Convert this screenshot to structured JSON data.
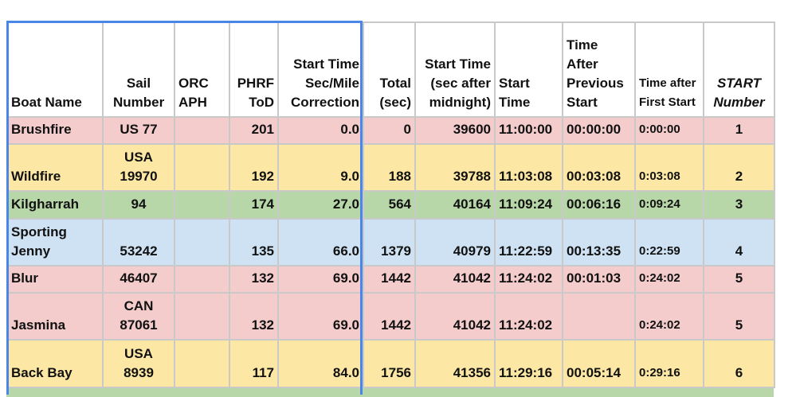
{
  "table": {
    "header": [
      "Boat Name",
      "Sail Number",
      "ORC APH",
      "PHRF ToD",
      "Start Time Sec/Mile Correction",
      "Total (sec)",
      "Start Time (sec after midnight)",
      "Start Time",
      "Time After Previous Start",
      "Time after First Start",
      "START Number"
    ],
    "rows": [
      {
        "color": "#f4cccc",
        "cells": [
          "Brushfire",
          "US 77",
          null,
          "201",
          "0.0",
          "0",
          "39600",
          "11:00:00",
          "00:00:00",
          "0:00:00",
          "1"
        ]
      },
      {
        "color": "#fce8a4",
        "cells": [
          "Wildfire",
          "USA 19970",
          null,
          "192",
          "9.0",
          "188",
          "39788",
          "11:03:08",
          "00:03:08",
          "0:03:08",
          "2"
        ]
      },
      {
        "color": "#b7d7a8",
        "cells": [
          "Kilgharrah",
          "94",
          null,
          "174",
          "27.0",
          "564",
          "40164",
          "11:09:24",
          "00:06:16",
          "0:09:24",
          "3"
        ]
      },
      {
        "color": "#cfe2f3",
        "cells": [
          "Sporting Jenny",
          "53242",
          null,
          "135",
          "66.0",
          "1379",
          "40979",
          "11:22:59",
          "00:13:35",
          "0:22:59",
          "4"
        ]
      },
      {
        "color": "#f4cccc",
        "cells": [
          "Blur",
          "46407",
          null,
          "132",
          "69.0",
          "1442",
          "41042",
          "11:24:02",
          "00:01:03",
          "0:24:02",
          "5"
        ]
      },
      {
        "color": "#f4cccc",
        "cells": [
          "Jasmina",
          "CAN 87061",
          null,
          "132",
          "69.0",
          "1442",
          "41042",
          "11:24:02",
          null,
          "0:24:02",
          "5"
        ]
      },
      {
        "color": "#fce8a4",
        "cells": [
          "Back Bay",
          "USA 8939",
          null,
          "117",
          "84.0",
          "1756",
          "41356",
          "11:29:16",
          "00:05:14",
          "0:29:16",
          "6"
        ]
      }
    ]
  }
}
